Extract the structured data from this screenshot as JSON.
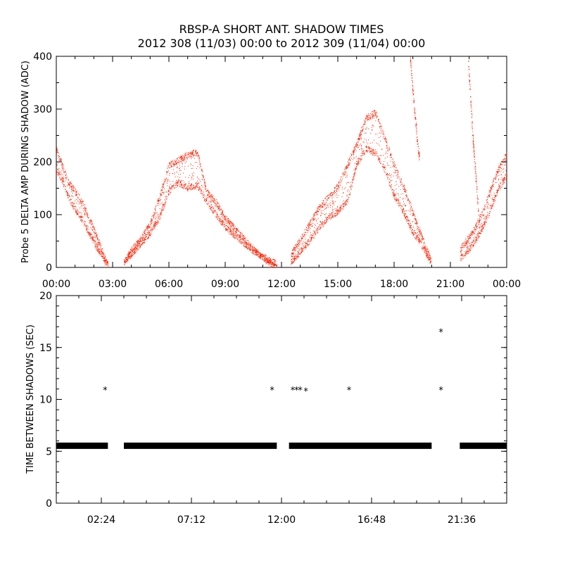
{
  "title_line1": "RBSP-A SHORT ANT. SHADOW TIMES",
  "title_line2": "2012 308 (11/03) 00:00 to 2012 309 (11/04) 00:00",
  "chart_data": [
    {
      "type": "scatter",
      "ylabel": "Probe 5 DELTA AMP DURING SHADOW (ADC)",
      "xlim_hours": [
        0,
        24
      ],
      "ylim": [
        0,
        400
      ],
      "x_tick_labels": [
        "00:00",
        "03:00",
        "06:00",
        "09:00",
        "12:00",
        "15:00",
        "18:00",
        "21:00",
        "00:00"
      ],
      "x_tick_hours": [
        0,
        3,
        6,
        9,
        12,
        15,
        18,
        21,
        24
      ],
      "y_tick_labels": [
        "0",
        "100",
        "200",
        "300",
        "400"
      ],
      "y_tick_values": [
        0,
        100,
        200,
        300,
        400
      ],
      "color": "#ff2000",
      "series": [
        {
          "x_hours": [
            0.0,
            0.3,
            0.6,
            0.9,
            1.2,
            1.5,
            1.8,
            2.1,
            2.4,
            2.6,
            2.75
          ],
          "upper": [
            230,
            200,
            170,
            155,
            140,
            120,
            95,
            70,
            40,
            20,
            10
          ],
          "lower": [
            180,
            160,
            130,
            110,
            95,
            75,
            55,
            35,
            20,
            5,
            2
          ]
        },
        {
          "x_hours": [
            3.6,
            4.0,
            4.5,
            5.0,
            5.5,
            6.0,
            6.5,
            7.0,
            7.5,
            8.0,
            8.5,
            9.0,
            9.5,
            10.0,
            10.5,
            11.0,
            11.5,
            11.75
          ],
          "upper": [
            15,
            40,
            60,
            90,
            140,
            200,
            210,
            220,
            225,
            150,
            130,
            100,
            80,
            60,
            40,
            25,
            10,
            5
          ],
          "lower": [
            5,
            20,
            40,
            60,
            90,
            140,
            155,
            145,
            150,
            120,
            95,
            70,
            55,
            40,
            25,
            15,
            5,
            2
          ]
        },
        {
          "x_hours": [
            12.5,
            13.0,
            13.5,
            14.0,
            14.5,
            15.0,
            15.5,
            16.0,
            16.5,
            17.0,
            17.5,
            18.0,
            18.5,
            19.0,
            19.5,
            19.95
          ],
          "upper": [
            30,
            60,
            90,
            120,
            140,
            160,
            200,
            240,
            290,
            300,
            250,
            200,
            160,
            110,
            60,
            20
          ],
          "lower": [
            5,
            25,
            45,
            70,
            90,
            100,
            120,
            190,
            220,
            210,
            180,
            130,
            100,
            60,
            35,
            5
          ]
        },
        {
          "x_hours": [
            21.5,
            21.9,
            22.3,
            22.7,
            23.1,
            23.5,
            24.0
          ],
          "upper": [
            40,
            60,
            80,
            110,
            150,
            190,
            220
          ],
          "lower": [
            10,
            25,
            45,
            70,
            100,
            140,
            170
          ]
        },
        {
          "x_hours": [
            18.85,
            18.95,
            19.1,
            19.25,
            19.35
          ],
          "upper": [
            400,
            360,
            300,
            240,
            210
          ],
          "lower": [
            400,
            340,
            280,
            220,
            200
          ]
        },
        {
          "x_hours": [
            21.95,
            22.1,
            22.2,
            22.35,
            22.5
          ],
          "upper": [
            400,
            310,
            250,
            180,
            110
          ],
          "lower": [
            380,
            290,
            230,
            160,
            90
          ]
        }
      ]
    },
    {
      "type": "scatter",
      "ylabel": "TIME BETWEEN SHADOWS (SEC)",
      "xlim_hours": [
        0,
        24
      ],
      "ylim": [
        0,
        20
      ],
      "x_tick_labels": [
        "02:24",
        "07:12",
        "12:00",
        "16:48",
        "21:36"
      ],
      "x_tick_hours": [
        2.4,
        7.2,
        12.0,
        16.8,
        21.6
      ],
      "y_tick_labels": [
        "0",
        "5",
        "10",
        "15",
        "20"
      ],
      "y_tick_values": [
        0,
        5,
        10,
        15,
        20
      ],
      "color": "#000000",
      "baseline_value": 5.5,
      "baseline_segments_hours": [
        [
          0.0,
          2.75
        ],
        [
          3.6,
          11.75
        ],
        [
          12.4,
          20.0
        ],
        [
          21.5,
          24.0
        ]
      ],
      "outliers": [
        {
          "x": 2.6,
          "y": 10.9
        },
        {
          "x": 11.5,
          "y": 10.9
        },
        {
          "x": 12.6,
          "y": 10.9
        },
        {
          "x": 12.8,
          "y": 10.9
        },
        {
          "x": 13.0,
          "y": 10.9
        },
        {
          "x": 13.3,
          "y": 10.8
        },
        {
          "x": 15.6,
          "y": 10.9
        },
        {
          "x": 20.5,
          "y": 16.5
        },
        {
          "x": 20.5,
          "y": 10.9
        }
      ]
    }
  ]
}
